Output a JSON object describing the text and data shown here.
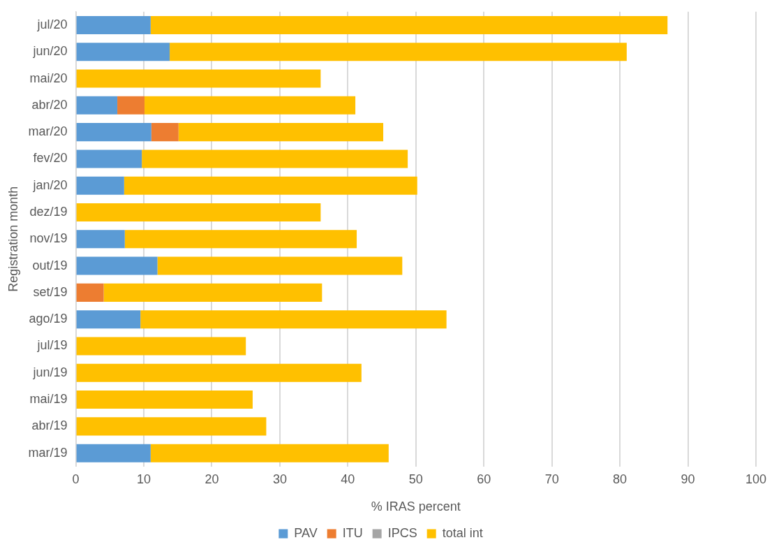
{
  "chart_data": {
    "type": "bar",
    "orientation": "horizontal",
    "stacked": true,
    "categories": [
      "jul/20",
      "jun/20",
      "mai/20",
      "abr/20",
      "mar/20",
      "fev/20",
      "jan/20",
      "dez/19",
      "nov/19",
      "out/19",
      "set/19",
      "ago/19",
      "jul/19",
      "jun/19",
      "mai/19",
      "abr/19",
      "mar/19"
    ],
    "series": [
      {
        "name": "PAV",
        "color": "#5b9bd5",
        "values": [
          11,
          13.8,
          0,
          6.1,
          11.1,
          9.7,
          7.1,
          0,
          7.2,
          12,
          0,
          9.5,
          0,
          0,
          0,
          0,
          11
        ]
      },
      {
        "name": "ITU",
        "color": "#ed7d31",
        "values": [
          0,
          0,
          0,
          4,
          4,
          0,
          0,
          0,
          0,
          0,
          4.1,
          0,
          0,
          0,
          0,
          0,
          0
        ]
      },
      {
        "name": "IPCS",
        "color": "#a5a5a5",
        "values": [
          0,
          0,
          0,
          0,
          0,
          0,
          0,
          0,
          0,
          0,
          0,
          0,
          0,
          0,
          0,
          0,
          0
        ]
      },
      {
        "name": "total int",
        "color": "#ffc000",
        "values": [
          76,
          67.2,
          36,
          31,
          30.1,
          39.1,
          43.1,
          36,
          34.1,
          36,
          32.1,
          45,
          25,
          42,
          26,
          28,
          35
        ]
      }
    ],
    "xlabel": "% IRAS percent",
    "ylabel": "Registration month",
    "xlim": [
      0,
      100
    ],
    "xticks": [
      0,
      10,
      20,
      30,
      40,
      50,
      60,
      70,
      80,
      90,
      100
    ],
    "grid": "x",
    "legend": "bottom"
  }
}
